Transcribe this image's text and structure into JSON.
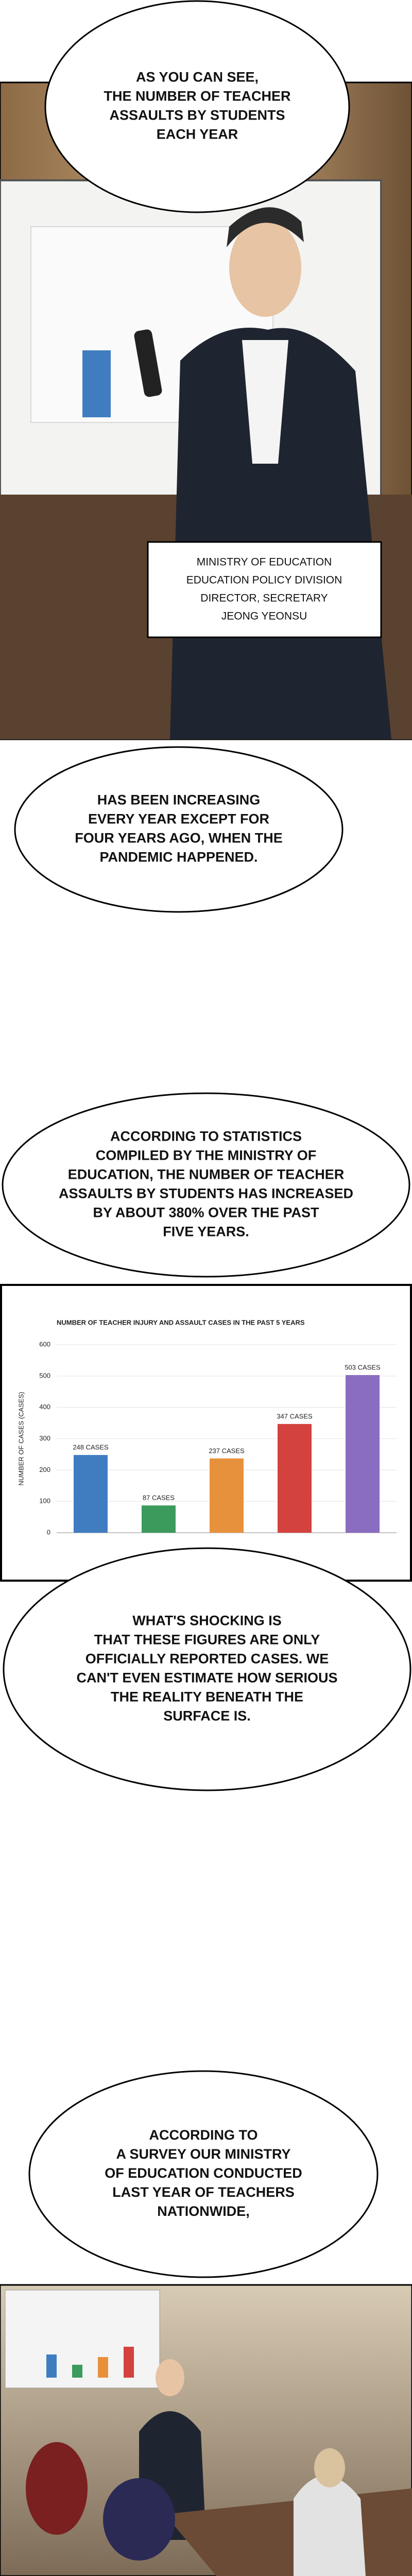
{
  "bubbles": [
    {
      "lines": [
        "AS YOU CAN SEE,",
        "THE NUMBER OF TEACHER",
        "ASSAULTS BY STUDENTS",
        "EACH YEAR"
      ]
    },
    {
      "lines": [
        "HAS BEEN INCREASING",
        "EVERY YEAR EXCEPT FOR",
        "FOUR YEARS AGO, WHEN THE",
        "PANDEMIC HAPPENED."
      ]
    },
    {
      "lines": [
        "ACCORDING TO STATISTICS",
        "COMPILED BY THE MINISTRY OF",
        "EDUCATION, THE NUMBER OF TEACHER",
        "ASSAULTS BY STUDENTS HAS INCREASED",
        "BY ABOUT 380% OVER THE PAST",
        "FIVE YEARS."
      ]
    },
    {
      "lines": [
        "WHAT'S SHOCKING IS",
        "THAT THESE FIGURES ARE ONLY",
        "OFFICIALLY REPORTED CASES. WE",
        "CAN'T EVEN ESTIMATE HOW SERIOUS",
        "THE REALITY BENEATH THE",
        "SURFACE IS."
      ]
    },
    {
      "lines": [
        "ACCORDING TO",
        "A SURVEY OUR MINISTRY",
        "OF EDUCATION CONDUCTED",
        "LAST YEAR OF TEACHERS",
        "NATIONWIDE,"
      ]
    }
  ],
  "caption": {
    "lines": [
      "MINISTRY OF EDUCATION",
      "EDUCATION POLICY DIVISION",
      "DIRECTOR, SECRETARY",
      "JEONG YEONSU"
    ]
  },
  "chart_data": {
    "type": "bar",
    "title": "NUMBER OF TEACHER INJURY AND ASSAULT CASES IN THE PAST 5 YEARS",
    "y_label": "NUMBER OF CASES (CASES)",
    "values": [
      248,
      87,
      237,
      347,
      503
    ],
    "value_labels": [
      "248 CASES",
      "87 CASES",
      "237 CASES",
      "347 CASES",
      "503 CASES"
    ],
    "colors": [
      "#3f7dc0",
      "#3c9a5c",
      "#e8913c",
      "#d3423f",
      "#8a6dc0"
    ],
    "ylim": [
      0,
      600
    ],
    "yticks": [
      0,
      100,
      200,
      300,
      400,
      500,
      600
    ],
    "grid": true
  }
}
